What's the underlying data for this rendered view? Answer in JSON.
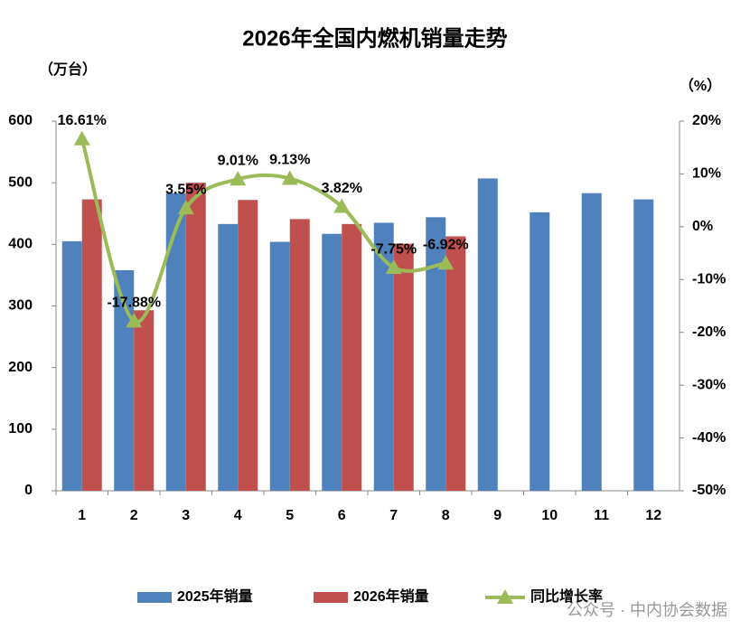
{
  "chart_data": {
    "type": "bar",
    "title": "2026年全国内燃机销量走势",
    "y_label": "（万台）",
    "y2_label": "（%）",
    "categories": [
      "1",
      "2",
      "3",
      "4",
      "5",
      "6",
      "7",
      "8",
      "9",
      "10",
      "11",
      "12"
    ],
    "ylim": [
      0,
      600
    ],
    "yticks": [
      0,
      100,
      200,
      300,
      400,
      500,
      600
    ],
    "y2lim": [
      -50,
      20
    ],
    "y2ticks": [
      {
        "value": -50,
        "label": "-50%"
      },
      {
        "value": -40,
        "label": "-40%"
      },
      {
        "value": -30,
        "label": "-30%"
      },
      {
        "value": -20,
        "label": "-20%"
      },
      {
        "value": -10,
        "label": "-10%"
      },
      {
        "value": 0,
        "label": "0%"
      },
      {
        "value": 10,
        "label": "10%"
      },
      {
        "value": 20,
        "label": "20%"
      }
    ],
    "series": [
      {
        "name": "2025年销量",
        "type": "bar",
        "color": "#4f81bd",
        "values": [
          405,
          358,
          483,
          433,
          404,
          417,
          435,
          444,
          507,
          452,
          483,
          473
        ]
      },
      {
        "name": "2026年销量",
        "type": "bar",
        "color": "#c0504d",
        "values": [
          473,
          293,
          500,
          472,
          441,
          433,
          401,
          413,
          null,
          null,
          null,
          null
        ]
      },
      {
        "name": "同比增长率",
        "type": "line",
        "axis": "y2",
        "color": "#9bbb59",
        "values": [
          16.61,
          -17.88,
          3.55,
          9.01,
          9.13,
          3.82,
          -7.75,
          -6.92,
          null,
          null,
          null,
          null
        ],
        "value_labels": [
          "16.61%",
          "-17.88%",
          "3.55%",
          "9.01%",
          "9.13%",
          "3.82%",
          "-7.75%",
          "-6.92%",
          null,
          null,
          null,
          null
        ]
      }
    ],
    "legend": "bottom",
    "watermark": "公众号 · 中内协会数据"
  }
}
